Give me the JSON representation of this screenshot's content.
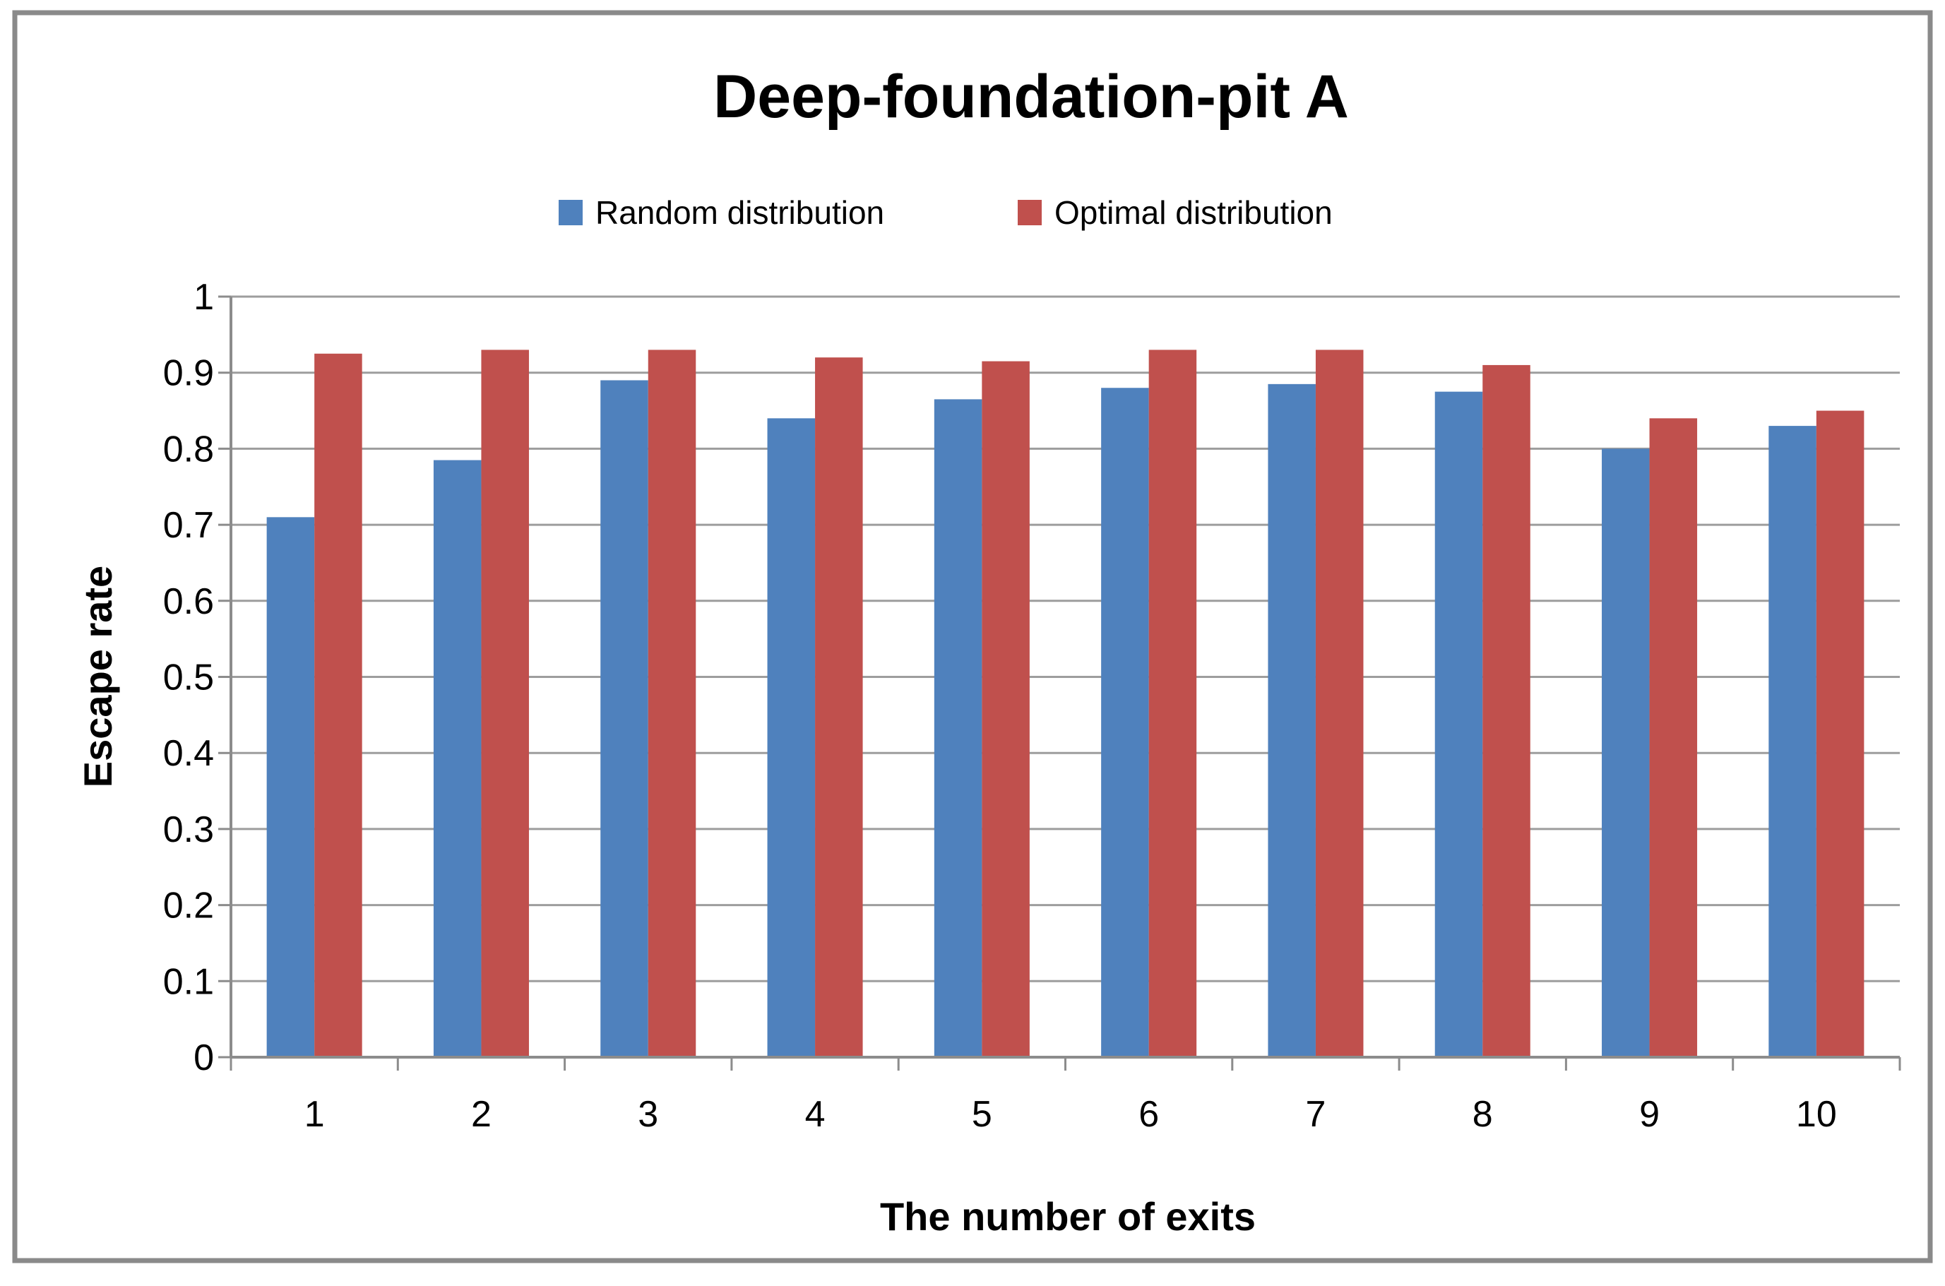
{
  "figure": {
    "border_color": "#8a8a8a",
    "background": "#ffffff"
  },
  "title": "Deep-foundation-pit A",
  "legend": [
    {
      "label": "Random distribution",
      "color": "#4f81bd"
    },
    {
      "label": "Optimal distribution",
      "color": "#c0504d"
    }
  ],
  "chart_data": {
    "type": "bar",
    "title": "Deep-foundation-pit A",
    "categories": [
      "1",
      "2",
      "3",
      "4",
      "5",
      "6",
      "7",
      "8",
      "9",
      "10"
    ],
    "series": [
      {
        "name": "Random distribution",
        "color": "#4f81bd",
        "values": [
          0.71,
          0.785,
          0.89,
          0.84,
          0.865,
          0.88,
          0.885,
          0.875,
          0.8,
          0.83
        ]
      },
      {
        "name": "Optimal distribution",
        "color": "#c0504d",
        "values": [
          0.925,
          0.93,
          0.93,
          0.92,
          0.915,
          0.93,
          0.93,
          0.91,
          0.84,
          0.85
        ]
      }
    ],
    "xlabel": "The number of exits",
    "ylabel": "Escape rate",
    "ylim": [
      0,
      1
    ],
    "ytick_step": 0.1,
    "ytick_labels": [
      "0",
      "0.1",
      "0.2",
      "0.3",
      "0.4",
      "0.5",
      "0.6",
      "0.7",
      "0.8",
      "0.9",
      "1"
    ],
    "grid": "horizontal",
    "legend_position": "top",
    "gridline_color": "#9d9d9d",
    "axis_color": "#8c8c8c",
    "text_color": "#000000"
  }
}
